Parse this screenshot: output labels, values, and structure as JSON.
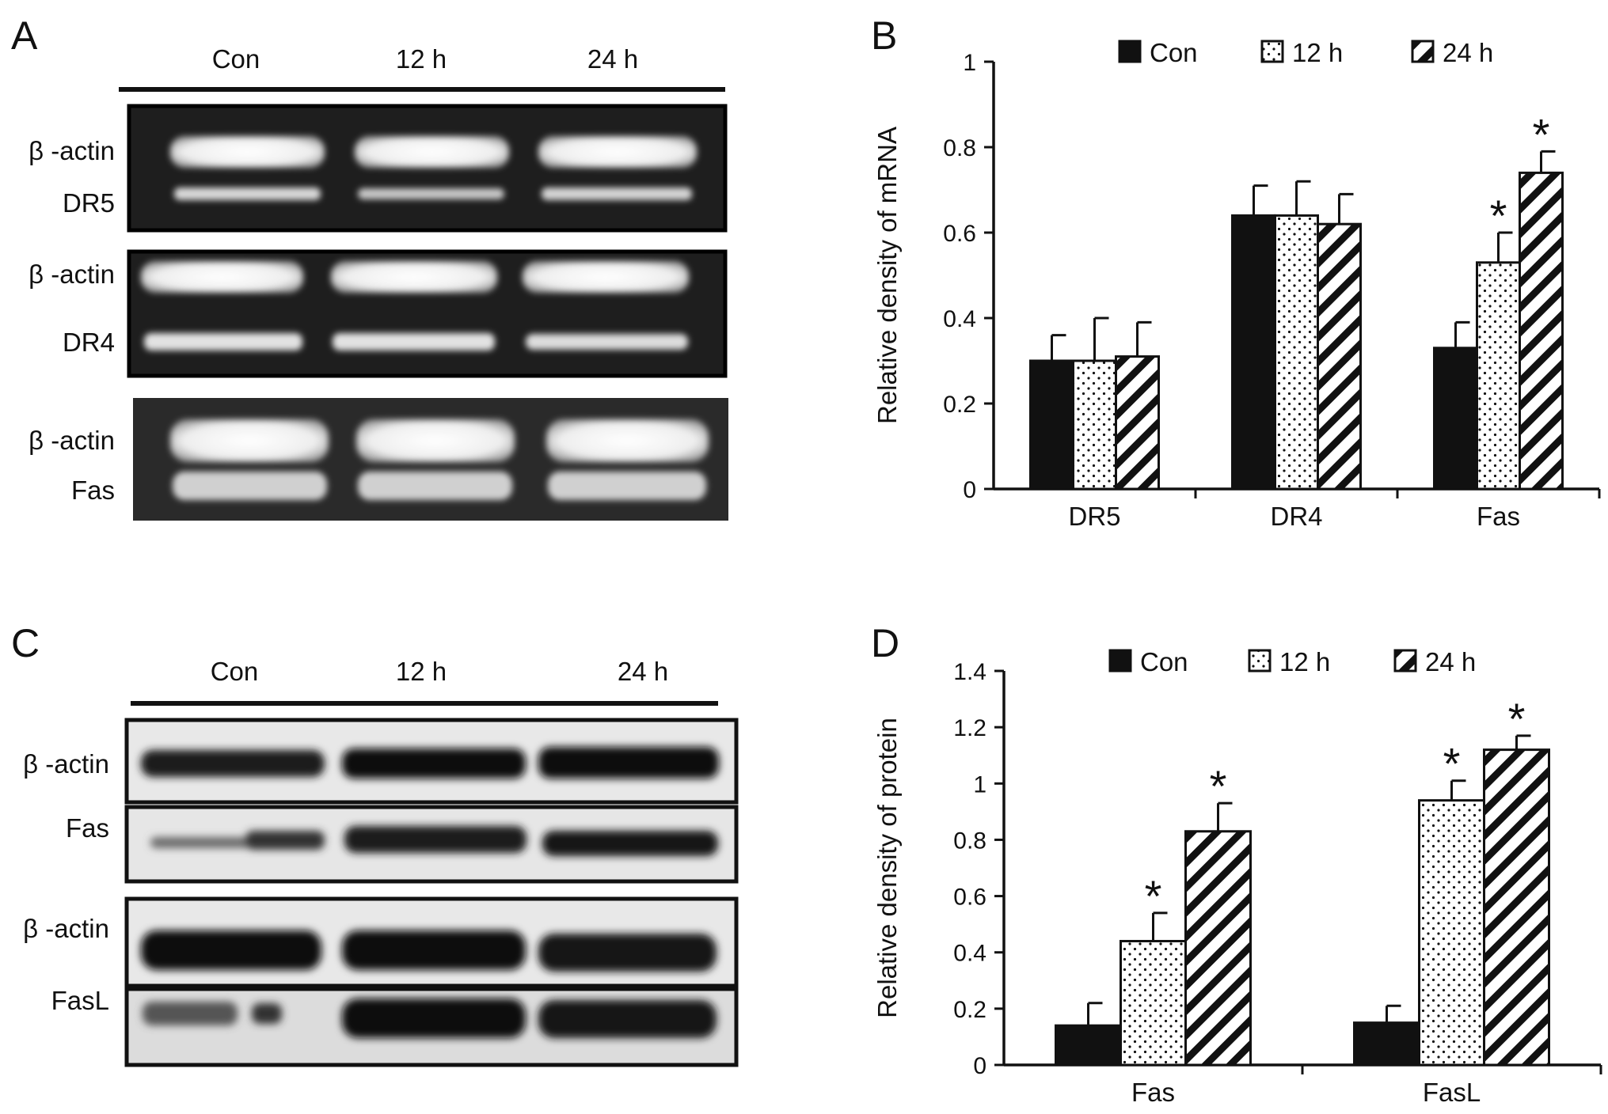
{
  "panels": {
    "A": {
      "letter": "A",
      "lanes": [
        "Con",
        "12 h",
        "24 h"
      ],
      "gels": [
        {
          "top": "β -actin",
          "bottom": "DR5"
        },
        {
          "top": "β -actin",
          "bottom": "DR4"
        },
        {
          "top": "β -actin",
          "bottom": "Fas"
        }
      ]
    },
    "B": {
      "letter": "B"
    },
    "C": {
      "letter": "C",
      "lanes": [
        "Con",
        "12 h",
        "24 h"
      ],
      "blots": [
        {
          "top": "β -actin",
          "bottom": "Fas"
        },
        {
          "top": "β -actin",
          "bottom": "FasL"
        }
      ]
    },
    "D": {
      "letter": "D"
    }
  },
  "colors": {
    "con": "#111111",
    "h12": "dotted-white",
    "h24": "diagonal-hatch"
  },
  "chart_data": [
    {
      "panel": "B",
      "type": "bar",
      "ylabel": "Relative density of mRNA",
      "xlabel": "",
      "categories": [
        "DR5",
        "DR4",
        "Fas"
      ],
      "ylim": [
        0,
        1
      ],
      "yticks": [
        0,
        0.2,
        0.4,
        0.6,
        0.8,
        1
      ],
      "ytick_labels": [
        "0",
        "0.2",
        "0.4",
        "0.6",
        "0.8",
        "1"
      ],
      "legend_position": "top",
      "series": [
        {
          "name": "Con",
          "values": [
            0.3,
            0.64,
            0.33
          ],
          "errors": [
            0.06,
            0.07,
            0.06
          ],
          "stars": [
            "",
            "",
            ""
          ]
        },
        {
          "name": "12 h",
          "values": [
            0.3,
            0.64,
            0.53
          ],
          "errors": [
            0.1,
            0.08,
            0.07
          ],
          "stars": [
            "",
            "",
            "*"
          ]
        },
        {
          "name": "24 h",
          "values": [
            0.31,
            0.62,
            0.74
          ],
          "errors": [
            0.08,
            0.07,
            0.05
          ],
          "stars": [
            "",
            "",
            "*"
          ]
        }
      ]
    },
    {
      "panel": "D",
      "type": "bar",
      "ylabel": "Relative density of protein",
      "xlabel": "",
      "categories": [
        "Fas",
        "FasL"
      ],
      "ylim": [
        0,
        1.4
      ],
      "yticks": [
        0,
        0.2,
        0.4,
        0.6,
        0.8,
        1,
        1.2,
        1.4
      ],
      "ytick_labels": [
        "0",
        "0.2",
        "0.4",
        "0.6",
        "0.8",
        "1",
        "1.2",
        "1.4"
      ],
      "legend_position": "top",
      "series": [
        {
          "name": "Con",
          "values": [
            0.14,
            0.15
          ],
          "errors": [
            0.08,
            0.06
          ],
          "stars": [
            "",
            ""
          ]
        },
        {
          "name": "12 h",
          "values": [
            0.44,
            0.94
          ],
          "errors": [
            0.1,
            0.07
          ],
          "stars": [
            "*",
            "*"
          ]
        },
        {
          "name": "24 h",
          "values": [
            0.83,
            1.12
          ],
          "errors": [
            0.1,
            0.05
          ],
          "stars": [
            "*",
            "*"
          ]
        }
      ]
    }
  ]
}
